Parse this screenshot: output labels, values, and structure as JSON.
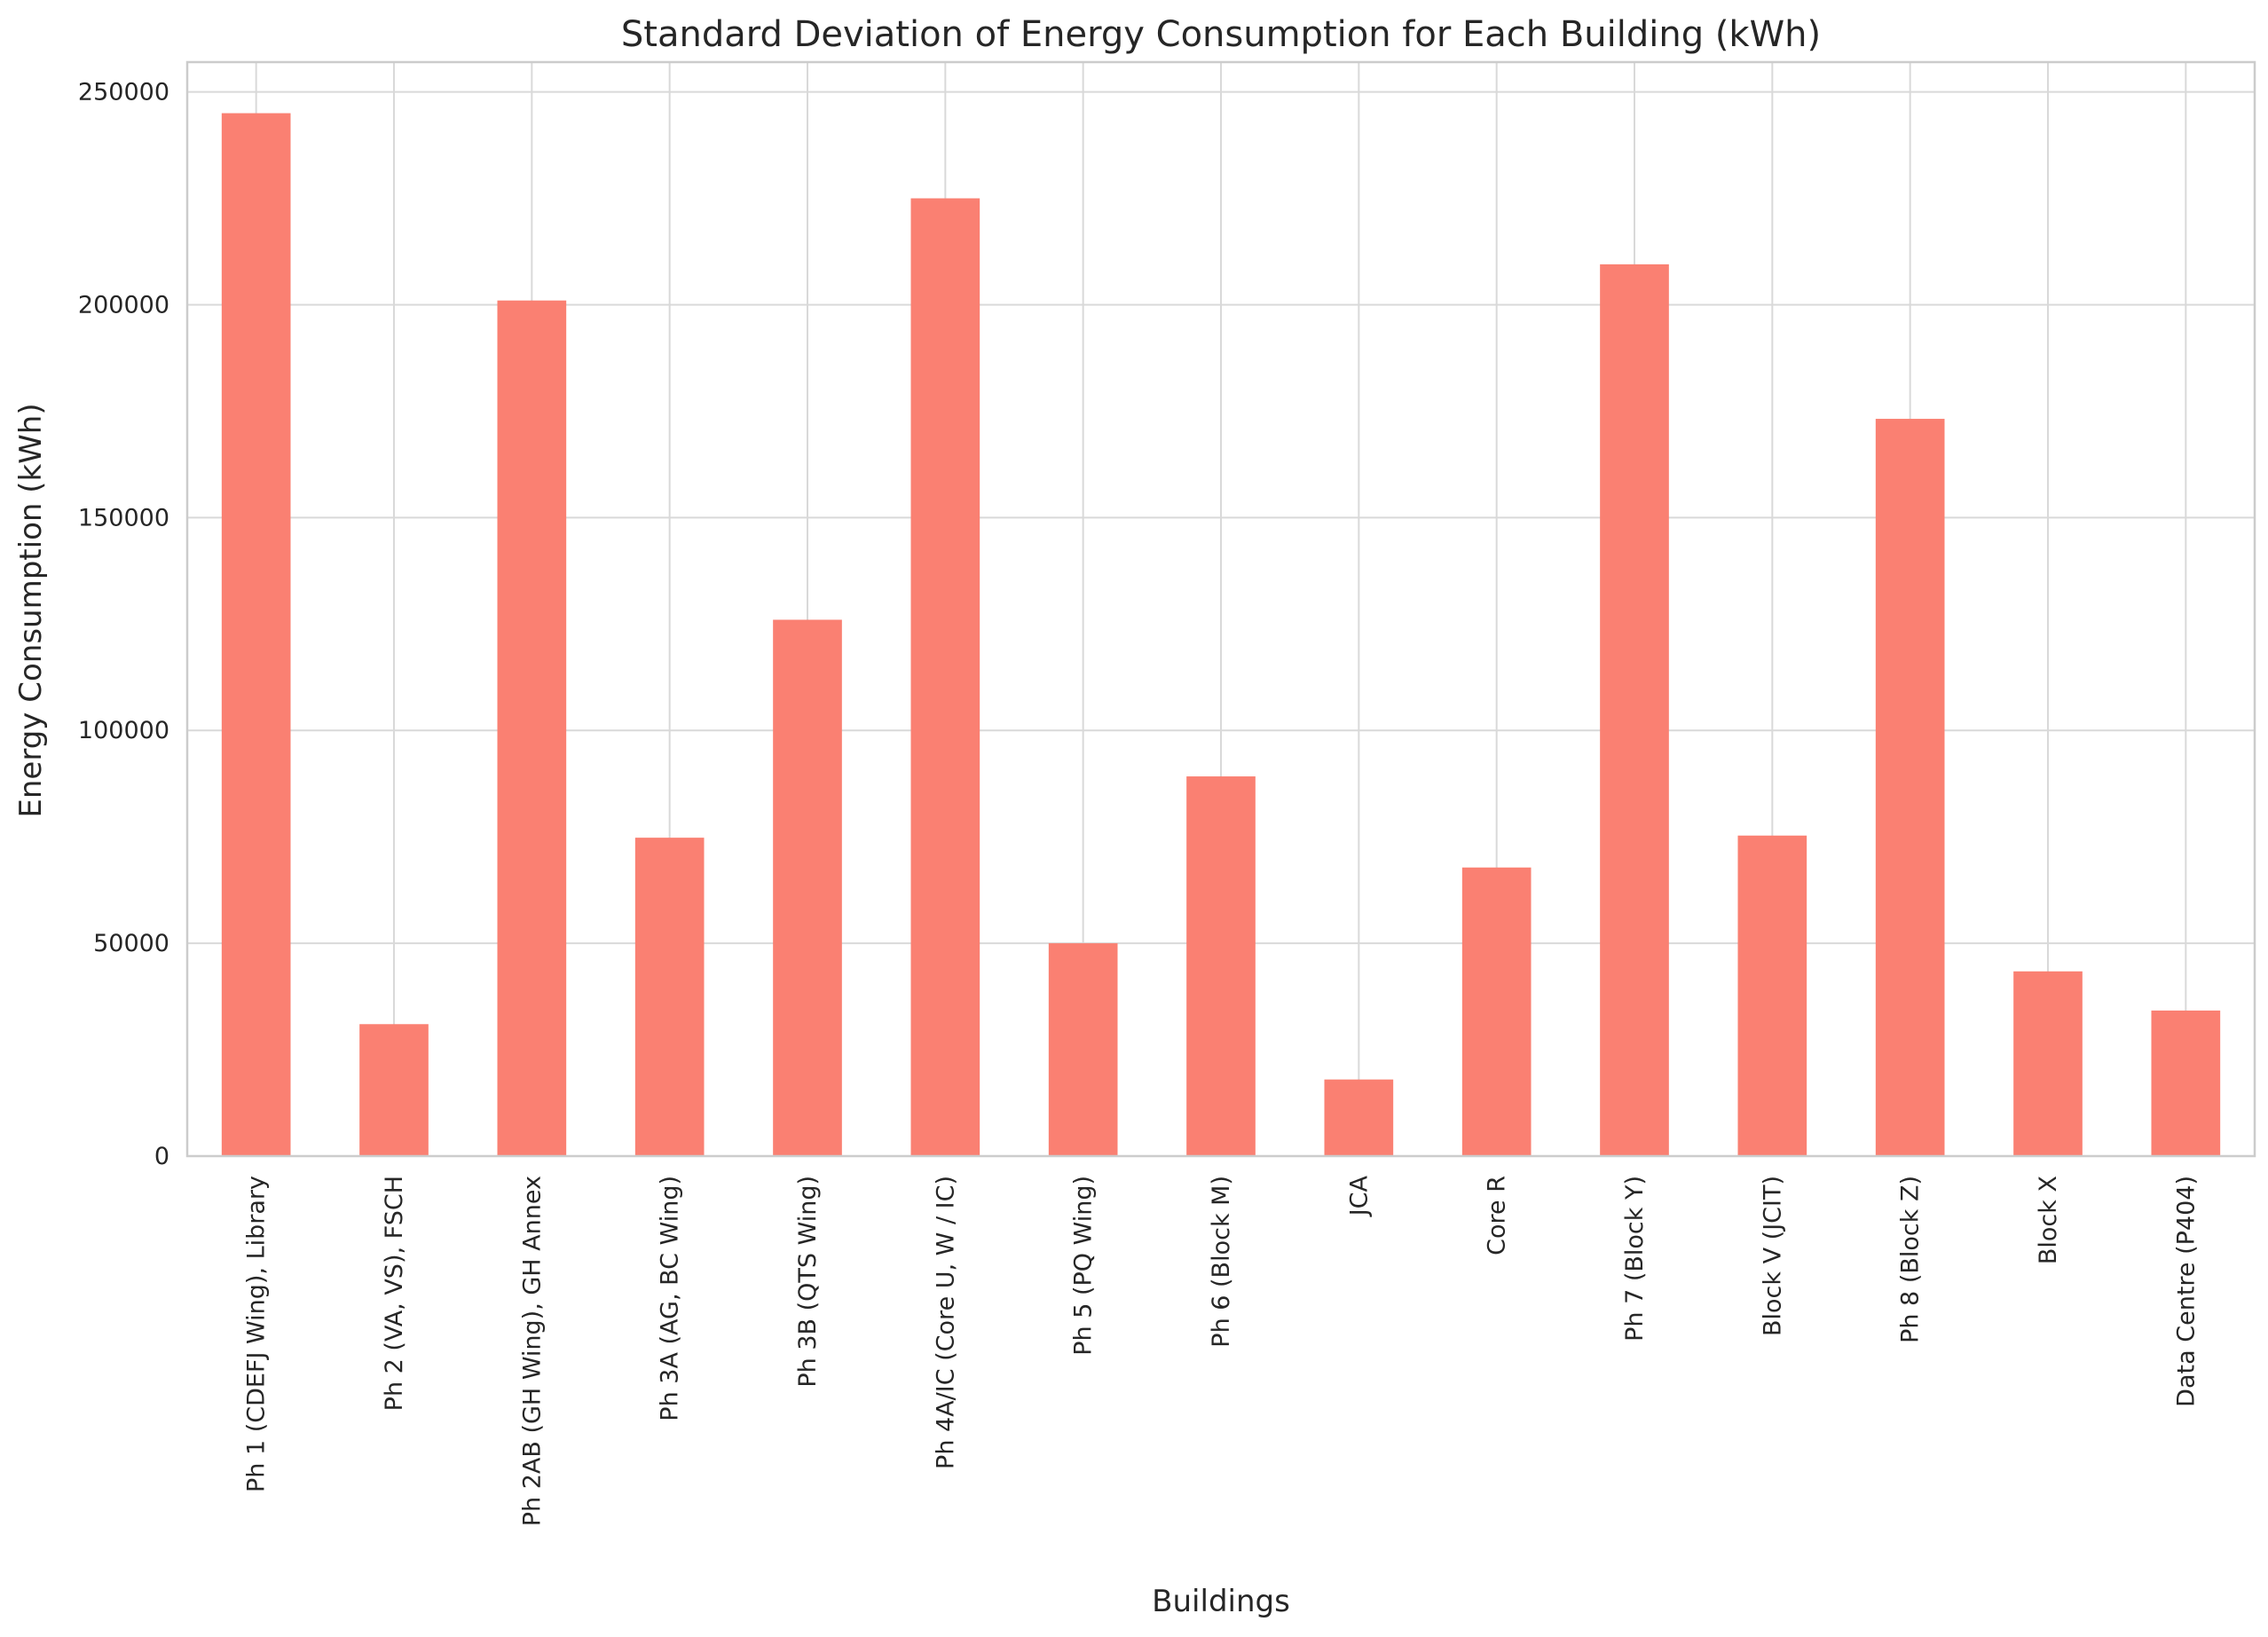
{
  "chart_data": {
    "type": "bar",
    "title": "Standard Deviation of Energy Consumption for Each Building (kWh)",
    "xlabel": "Buildings",
    "ylabel": "Energy Consumption (kWh)",
    "categories": [
      "Ph 1 (CDEFJ Wing), Library",
      "Ph 2 (VA, VS), FSCH",
      "Ph 2AB (GH Wing), GH Annex",
      "Ph 3A (AG, BC Wing)",
      "Ph 3B (QTS Wing)",
      "Ph 4A/IC (Core U, W / IC)",
      "Ph 5 (PQ Wing)",
      "Ph 6 (Block M)",
      "JCA",
      "Core R",
      "Ph 7 (Block Y)",
      "Block V (JCIT)",
      "Ph 8 (Block Z)",
      "Block X",
      "Data Centre (P404)"
    ],
    "values": [
      245000,
      31000,
      201000,
      74800,
      126000,
      225000,
      50000,
      89200,
      18000,
      67800,
      209500,
      75300,
      173200,
      43400,
      34200
    ],
    "ylim": [
      0,
      257000
    ],
    "yticks": [
      0,
      50000,
      100000,
      150000,
      200000,
      250000
    ],
    "grid": true,
    "colors": {
      "bar": "#fa8072",
      "grid": "#d9d9d9",
      "frame": "#cccccc",
      "text": "#262626"
    }
  }
}
